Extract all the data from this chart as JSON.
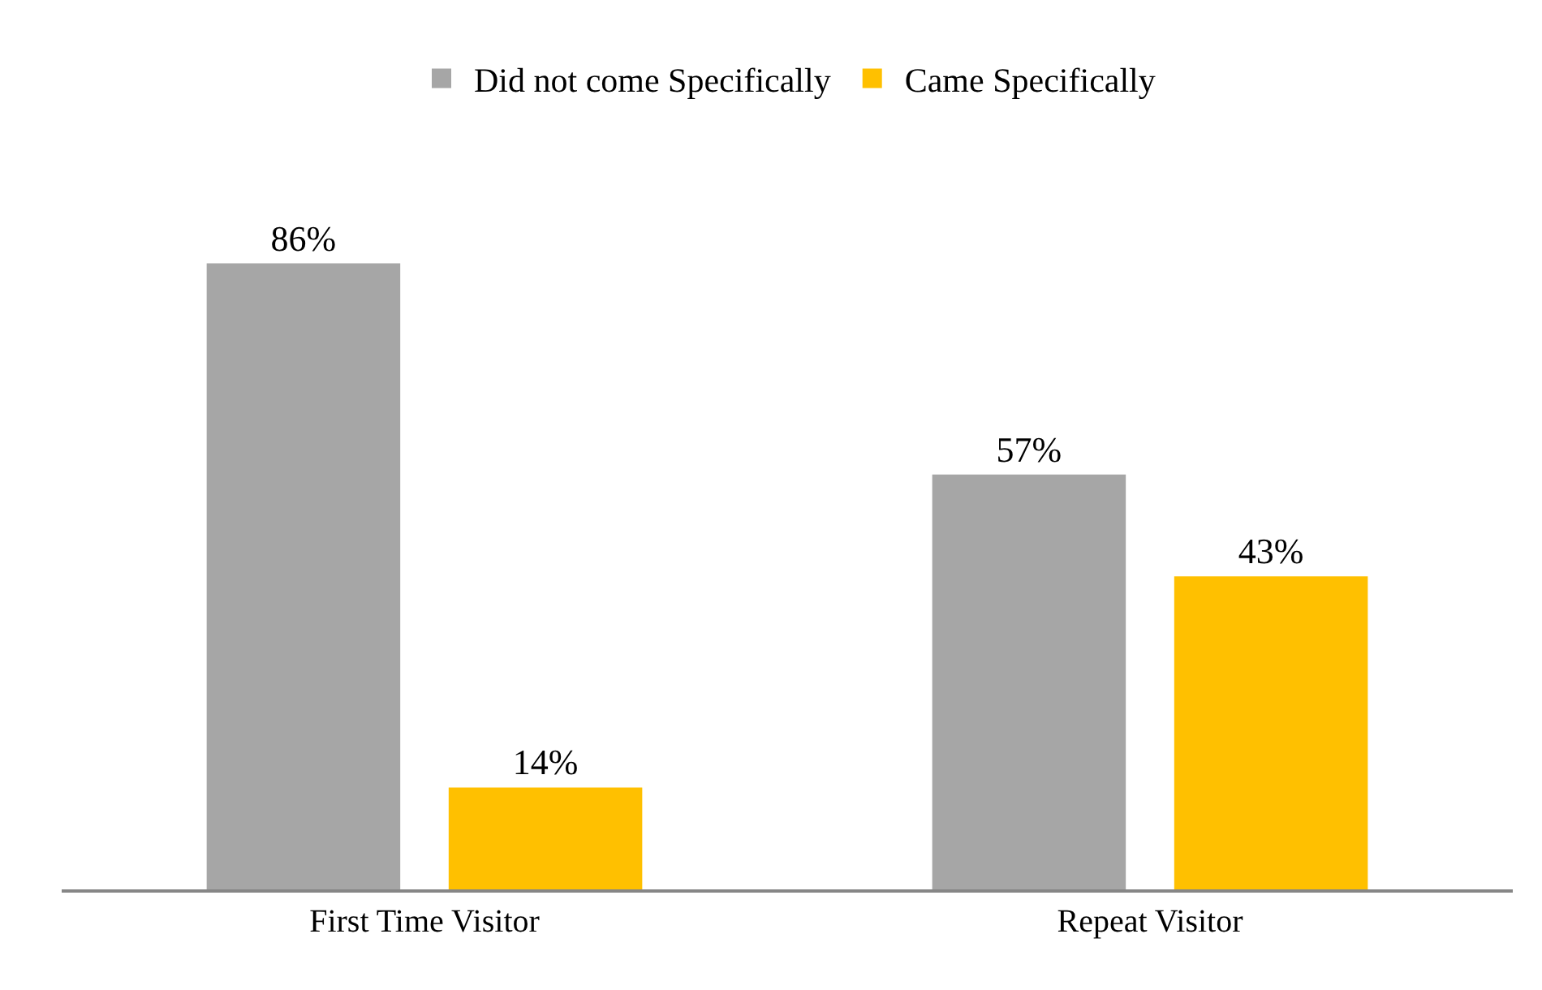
{
  "chart_data": {
    "type": "bar",
    "categories": [
      "First Time Visitor",
      "Repeat Visitor"
    ],
    "series": [
      {
        "name": "Did not come Specifically",
        "color": "#a6a6a6",
        "values": [
          86,
          57
        ],
        "value_labels": [
          "86%",
          "57%"
        ]
      },
      {
        "name": "Came Specifically",
        "color": "#ffc000",
        "values": [
          14,
          43
        ],
        "value_labels": [
          "14%",
          "43%"
        ]
      }
    ],
    "legend": "top"
  }
}
